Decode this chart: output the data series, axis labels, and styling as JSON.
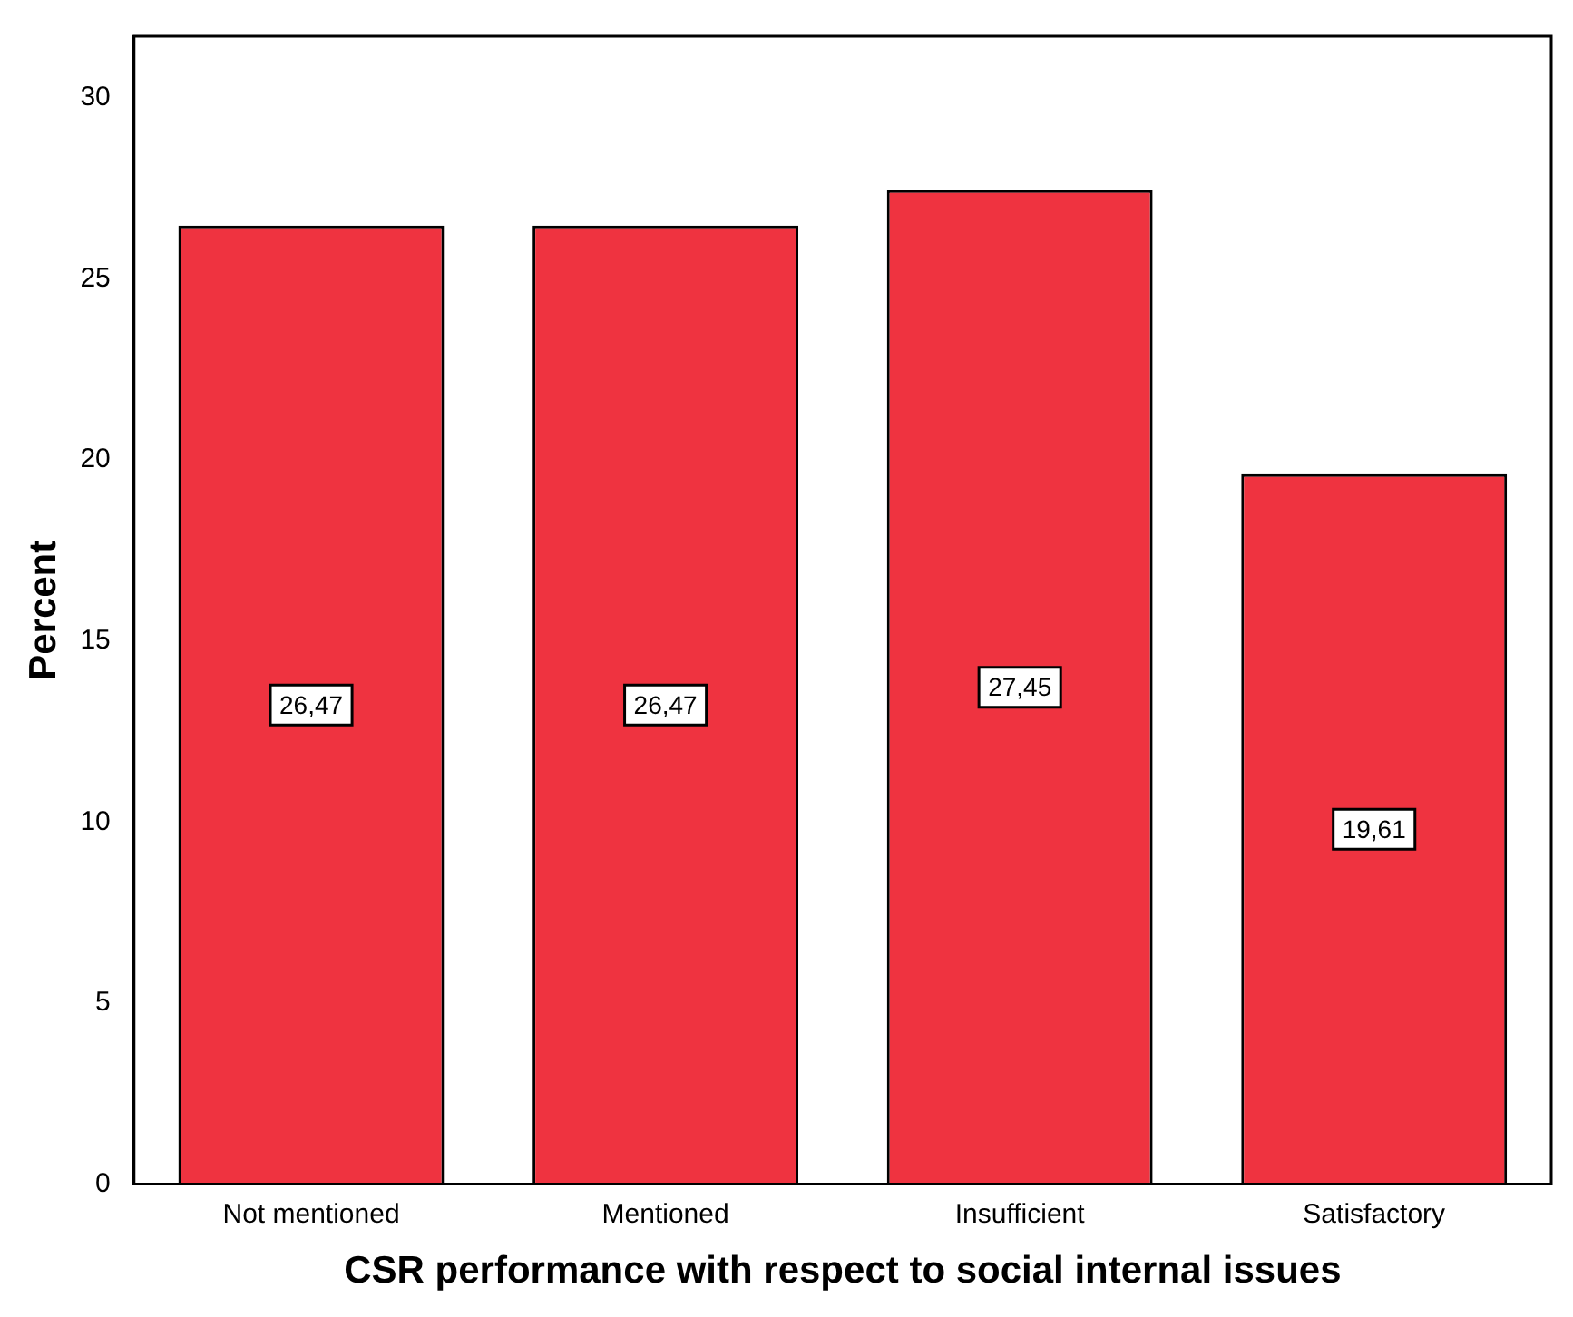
{
  "chart_data": {
    "type": "bar",
    "xlabel": "CSR performance with respect to social internal issues",
    "ylabel": "Percent",
    "categories": [
      "Not mentioned",
      "Mentioned",
      "Insufficient",
      "Satisfactory"
    ],
    "values": [
      26.47,
      26.47,
      27.45,
      19.61
    ],
    "value_labels": [
      "26,47",
      "26,47",
      "27,45",
      "19,61"
    ],
    "color": "#ef3340",
    "ylim": [
      0,
      31.7
    ],
    "yticks": [
      0,
      5,
      10,
      15,
      20,
      25,
      30
    ],
    "grid": false,
    "legend": false
  }
}
